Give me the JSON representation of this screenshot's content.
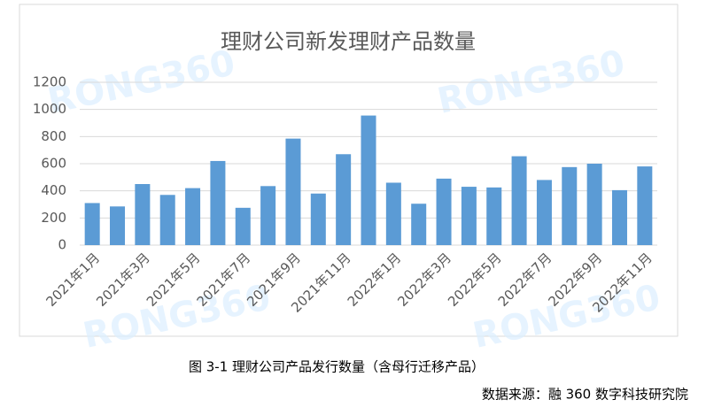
{
  "chart_data": {
    "type": "bar",
    "title": "理财公司新发理财产品数量",
    "categories": [
      "2021年1月",
      null,
      "2021年3月",
      null,
      "2021年5月",
      null,
      "2021年7月",
      null,
      "2021年9月",
      null,
      "2021年11月",
      null,
      "2022年1月",
      null,
      "2022年3月",
      null,
      "2022年5月",
      null,
      "2022年7月",
      null,
      "2022年9月",
      null,
      "2022年11月"
    ],
    "values": [
      310,
      285,
      450,
      370,
      420,
      620,
      275,
      435,
      785,
      380,
      670,
      955,
      460,
      305,
      490,
      430,
      425,
      655,
      480,
      575,
      600,
      405,
      580
    ],
    "color": "#5b9bd5",
    "ylim": [
      0,
      1200
    ],
    "yticks": [
      0,
      200,
      400,
      600,
      800,
      1000,
      1200
    ],
    "grid": true,
    "watermark": "RONG360"
  },
  "caption": "图 3-1 理财公司产品发行数量（含母行迁移产品）",
  "source": "数据来源：融 360 数字科技研究院"
}
